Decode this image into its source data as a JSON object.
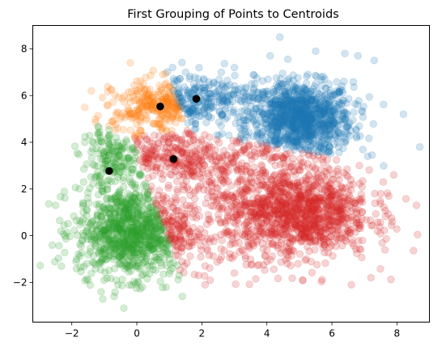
{
  "chart_data": {
    "type": "scatter",
    "title": "First Grouping of Points to Centroids",
    "xlabel": "",
    "ylabel": "",
    "xlim": [
      -3.2,
      9.0
    ],
    "ylim": [
      -3.7,
      9.0
    ],
    "xticks": [
      -2,
      0,
      2,
      4,
      6,
      8
    ],
    "yticks": [
      -2,
      0,
      2,
      4,
      6,
      8
    ],
    "grid": false,
    "legend": "none",
    "point_alpha": 0.2,
    "centroid_color": "#000000",
    "series": [
      {
        "color": "#1f77b4",
        "approx_count": 1000,
        "center": [
          5.0,
          5.0
        ],
        "spread": [
          0.8,
          0.8
        ],
        "points": [
          [
            4.4,
            8.5
          ],
          [
            8.7,
            3.8
          ],
          [
            8.2,
            5.2
          ],
          [
            7.3,
            7.5
          ],
          [
            6.8,
            7.7
          ],
          [
            6.4,
            7.8
          ],
          [
            5.5,
            7.9
          ],
          [
            4.1,
            7.7
          ],
          [
            3.0,
            7.2
          ],
          [
            2.6,
            7.0
          ],
          [
            7.1,
            3.4
          ],
          [
            3.3,
            3.7
          ],
          [
            1.5,
            7.0
          ],
          [
            1.1,
            7.2
          ],
          [
            1.3,
            6.3
          ],
          [
            2.4,
            6.1
          ]
        ]
      },
      {
        "color": "#ff7f0e",
        "approx_count": 260,
        "center": [
          0.7,
          5.6
        ],
        "spread": [
          0.6,
          0.45
        ],
        "points": [
          [
            -0.2,
            7.4
          ],
          [
            0.8,
            6.9
          ],
          [
            0.9,
            6.3
          ],
          [
            -0.9,
            5.6
          ],
          [
            -1.6,
            5.5
          ],
          [
            -1.4,
            6.2
          ],
          [
            0.2,
            6.5
          ],
          [
            1.6,
            5.3
          ],
          [
            1.8,
            4.8
          ],
          [
            0.5,
            4.8
          ],
          [
            -0.5,
            5.0
          ]
        ]
      },
      {
        "color": "#2ca02c",
        "approx_count": 900,
        "center": [
          -0.2,
          0.2
        ],
        "spread": [
          0.8,
          0.95
        ],
        "points": [
          [
            -2.5,
            1.3
          ],
          [
            -2.6,
            -0.4
          ],
          [
            -1.5,
            -1.9
          ],
          [
            -1.1,
            -2.4
          ],
          [
            -0.7,
            -2.6
          ],
          [
            -0.4,
            -3.1
          ],
          [
            0.9,
            -2.2
          ],
          [
            1.4,
            -2.6
          ],
          [
            1.9,
            -1.7
          ],
          [
            -1.2,
            4.4
          ],
          [
            -1.6,
            4.0
          ],
          [
            -1.3,
            3.0
          ],
          [
            -0.6,
            3.6
          ],
          [
            -0.2,
            2.3
          ],
          [
            1.3,
            0.3
          ]
        ]
      },
      {
        "color": "#d62728",
        "approx_count": 1100,
        "center": [
          4.8,
          1.0
        ],
        "spread": [
          1.2,
          1.0
        ],
        "points": [
          [
            8.6,
            1.3
          ],
          [
            7.9,
            2.6
          ],
          [
            7.5,
            1.8
          ],
          [
            7.4,
            0.2
          ],
          [
            7.2,
            -1.8
          ],
          [
            6.6,
            -2.1
          ],
          [
            5.1,
            -1.9
          ],
          [
            3.0,
            -1.6
          ],
          [
            2.1,
            -2.1
          ],
          [
            1.3,
            -1.7
          ],
          [
            1.0,
            3.3
          ],
          [
            0.3,
            4.1
          ],
          [
            1.5,
            3.9
          ],
          [
            3.3,
            4.1
          ],
          [
            2.6,
            2.4
          ],
          [
            2.2,
            0.9
          ],
          [
            6.0,
            2.4
          ],
          [
            4.5,
            3.1
          ]
        ]
      }
    ],
    "centroids": [
      [
        1.83,
        5.86
      ],
      [
        0.72,
        5.53
      ],
      [
        1.13,
        3.28
      ],
      [
        -0.85,
        2.77
      ]
    ]
  }
}
